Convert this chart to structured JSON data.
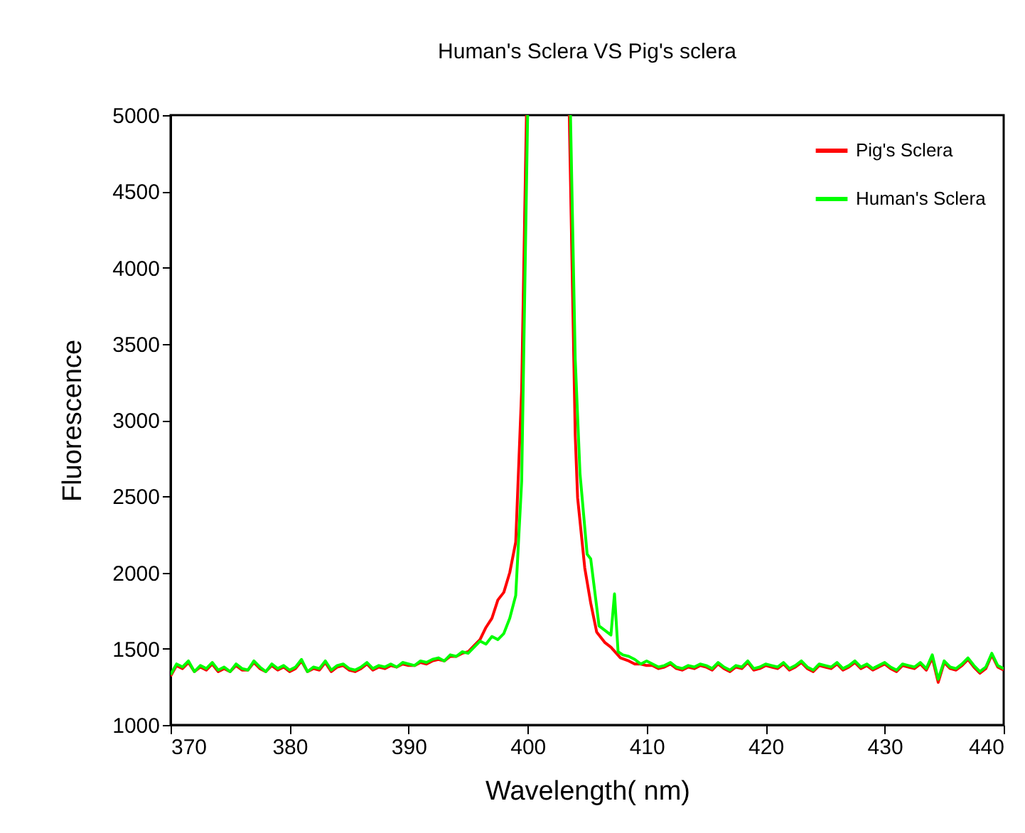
{
  "chart_data": {
    "type": "line",
    "title": "Human's Sclera VS Pig's sclera",
    "xlabel": "Wavelength(   nm)",
    "ylabel": "Fluorescence",
    "xlim": [
      370,
      440
    ],
    "xticks": [
      370,
      380,
      390,
      400,
      410,
      420,
      430,
      440
    ],
    "ylim": [
      1000,
      5000
    ],
    "yticks": [
      1000,
      1500,
      2000,
      2500,
      3000,
      3500,
      4000,
      4500,
      5000
    ],
    "grid": false,
    "legend": "top right",
    "marker": "none",
    "line_style": "solid",
    "series": [
      {
        "name": "Pig's Sclera",
        "color": "#ff0000",
        "x": [
          370,
          370.5,
          371,
          371.5,
          372,
          372.5,
          373,
          373.5,
          374,
          374.5,
          375,
          375.5,
          376,
          376.5,
          377,
          377.5,
          378,
          378.5,
          379,
          379.5,
          380,
          380.5,
          381,
          381.5,
          382,
          382.5,
          383,
          383.5,
          384,
          384.5,
          385,
          385.5,
          386,
          386.5,
          387,
          387.5,
          388,
          388.5,
          389,
          389.5,
          390,
          390.5,
          391,
          391.5,
          392,
          392.5,
          393,
          393.5,
          394,
          394.5,
          395,
          395.5,
          396,
          396.5,
          397,
          397.5,
          398,
          398.5,
          399,
          399.5,
          399.9,
          401.5,
          403.5,
          404,
          404.2,
          404.8,
          405.3,
          405.8,
          406.5,
          407,
          407.8,
          408.5,
          409,
          409.5,
          410,
          410.5,
          411,
          411.5,
          412,
          412.5,
          413,
          413.5,
          414,
          414.5,
          415,
          415.5,
          416,
          416.5,
          417,
          417.5,
          418,
          418.5,
          419,
          419.5,
          420,
          420.5,
          421,
          421.5,
          422,
          422.5,
          423,
          423.5,
          424,
          424.5,
          425,
          425.5,
          426,
          426.5,
          427,
          427.5,
          428,
          428.5,
          429,
          429.5,
          430,
          430.5,
          431,
          431.5,
          432,
          432.5,
          433,
          433.5,
          434,
          434.5,
          435,
          435.5,
          436,
          436.5,
          437,
          437.5,
          438,
          438.5,
          439,
          439.5,
          440
        ],
        "values": [
          1320,
          1390,
          1370,
          1410,
          1350,
          1380,
          1360,
          1400,
          1350,
          1370,
          1350,
          1390,
          1360,
          1360,
          1410,
          1370,
          1350,
          1390,
          1360,
          1380,
          1350,
          1370,
          1420,
          1350,
          1370,
          1360,
          1410,
          1350,
          1380,
          1390,
          1360,
          1350,
          1370,
          1400,
          1360,
          1380,
          1370,
          1390,
          1380,
          1400,
          1390,
          1390,
          1410,
          1400,
          1420,
          1430,
          1420,
          1450,
          1450,
          1470,
          1480,
          1520,
          1560,
          1640,
          1700,
          1820,
          1870,
          2000,
          2200,
          3200,
          5000,
          null,
          5000,
          2900,
          2490,
          2030,
          1800,
          1610,
          1540,
          1510,
          1440,
          1420,
          1400,
          1400,
          1390,
          1390,
          1370,
          1380,
          1400,
          1370,
          1360,
          1380,
          1370,
          1390,
          1380,
          1360,
          1400,
          1370,
          1350,
          1380,
          1370,
          1410,
          1360,
          1370,
          1390,
          1380,
          1370,
          1400,
          1360,
          1380,
          1410,
          1370,
          1350,
          1390,
          1380,
          1370,
          1400,
          1360,
          1380,
          1410,
          1370,
          1390,
          1360,
          1380,
          1400,
          1370,
          1350,
          1390,
          1380,
          1370,
          1400,
          1360,
          1440,
          1280,
          1410,
          1370,
          1360,
          1390,
          1430,
          1380,
          1340,
          1370,
          1460,
          1380,
          1360
        ]
      },
      {
        "name": "Human's Sclera",
        "color": "#00ff00",
        "x": [
          370,
          370.5,
          371,
          371.5,
          372,
          372.5,
          373,
          373.5,
          374,
          374.5,
          375,
          375.5,
          376,
          376.5,
          377,
          377.5,
          378,
          378.5,
          379,
          379.5,
          380,
          380.5,
          381,
          381.5,
          382,
          382.5,
          383,
          383.5,
          384,
          384.5,
          385,
          385.5,
          386,
          386.5,
          387,
          387.5,
          388,
          388.5,
          389,
          389.5,
          390,
          390.5,
          391,
          391.5,
          392,
          392.5,
          393,
          393.5,
          394,
          394.5,
          395,
          395.5,
          396,
          396.5,
          397,
          397.5,
          398,
          398.5,
          399,
          399.5,
          400,
          401.5,
          403.6,
          404,
          404.4,
          405,
          405.3,
          406,
          407,
          407.3,
          407.6,
          408,
          408.5,
          409,
          409.5,
          410,
          410.5,
          411,
          411.5,
          412,
          412.5,
          413,
          413.5,
          414,
          414.5,
          415,
          415.5,
          416,
          416.5,
          417,
          417.5,
          418,
          418.5,
          419,
          419.5,
          420,
          420.5,
          421,
          421.5,
          422,
          422.5,
          423,
          423.5,
          424,
          424.5,
          425,
          425.5,
          426,
          426.5,
          427,
          427.5,
          428,
          428.5,
          429,
          429.5,
          430,
          430.5,
          431,
          431.5,
          432,
          432.5,
          433,
          433.5,
          434,
          434.5,
          435,
          435.5,
          436,
          436.5,
          437,
          437.5,
          438,
          438.5,
          439,
          439.5,
          440
        ],
        "values": [
          1330,
          1400,
          1380,
          1420,
          1350,
          1390,
          1370,
          1410,
          1360,
          1380,
          1350,
          1400,
          1370,
          1360,
          1420,
          1380,
          1350,
          1400,
          1370,
          1390,
          1360,
          1380,
          1430,
          1350,
          1380,
          1370,
          1420,
          1360,
          1390,
          1400,
          1370,
          1360,
          1380,
          1410,
          1370,
          1390,
          1380,
          1400,
          1380,
          1410,
          1400,
          1390,
          1420,
          1410,
          1430,
          1440,
          1420,
          1460,
          1450,
          1480,
          1470,
          1510,
          1550,
          1530,
          1580,
          1560,
          1600,
          1700,
          1850,
          2600,
          5000,
          null,
          5000,
          3400,
          2650,
          2120,
          2090,
          1650,
          1590,
          1860,
          1480,
          1460,
          1450,
          1430,
          1400,
          1420,
          1400,
          1380,
          1390,
          1410,
          1380,
          1370,
          1390,
          1380,
          1400,
          1390,
          1370,
          1410,
          1380,
          1360,
          1390,
          1380,
          1420,
          1370,
          1380,
          1400,
          1390,
          1380,
          1410,
          1370,
          1390,
          1420,
          1380,
          1360,
          1400,
          1390,
          1380,
          1410,
          1370,
          1390,
          1420,
          1380,
          1400,
          1370,
          1390,
          1410,
          1380,
          1360,
          1400,
          1390,
          1380,
          1410,
          1370,
          1460,
          1300,
          1420,
          1380,
          1370,
          1400,
          1440,
          1390,
          1350,
          1380,
          1470,
          1390,
          1370
        ]
      }
    ]
  }
}
